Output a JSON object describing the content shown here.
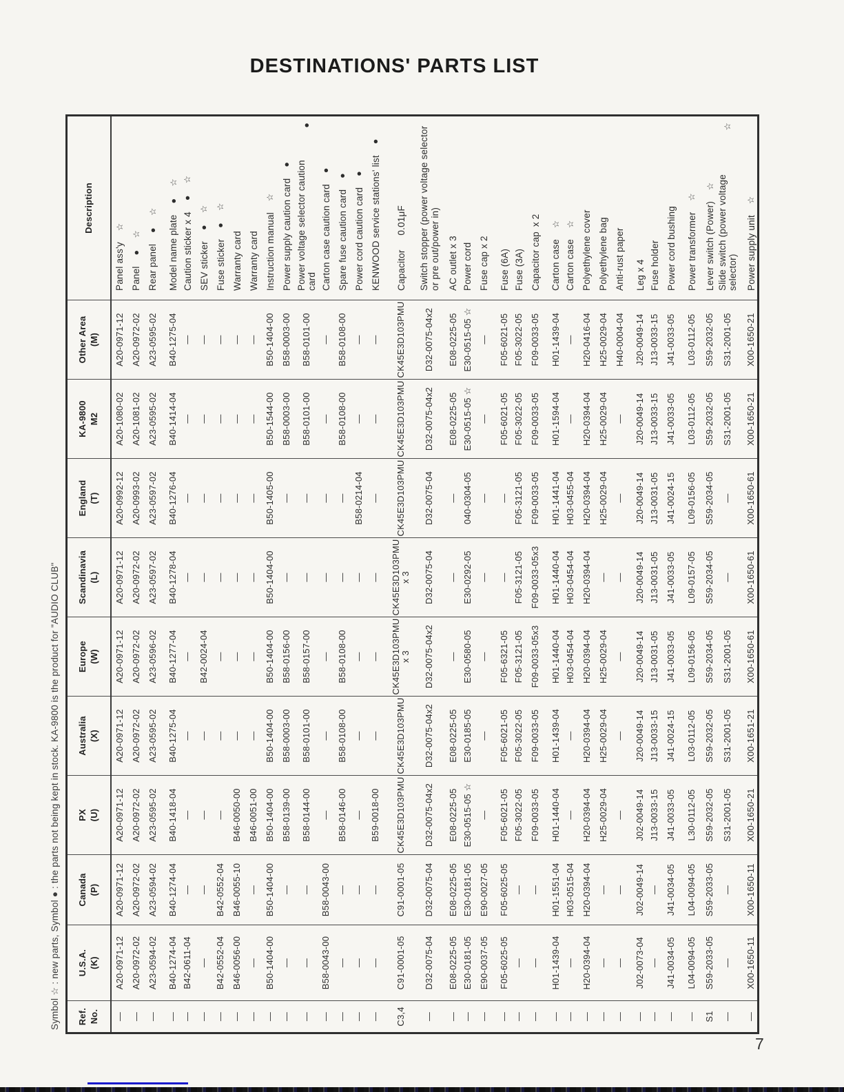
{
  "page": {
    "title": "DESTINATIONS' PARTS LIST",
    "note": "Symbol ☆ : new parts, Symbol ● : the parts not being kept in stock.  KA-9800 is the product for \"AUDIO CLUB\"",
    "number": "7",
    "accent_line_color": "#1a1acc"
  },
  "table": {
    "column_keys": [
      "ref",
      "usa",
      "canada",
      "px",
      "australia",
      "europe",
      "scandinavia",
      "england",
      "ka9800",
      "other",
      "description"
    ],
    "columns": [
      {
        "label": "Ref.",
        "label2": "No."
      },
      {
        "label": "U.S.A.",
        "label2": "(K)"
      },
      {
        "label": "Canada",
        "label2": "(P)"
      },
      {
        "label": "PX",
        "label2": "(U)"
      },
      {
        "label": "Australia",
        "label2": "(X)"
      },
      {
        "label": "Europe",
        "label2": "(W)"
      },
      {
        "label": "Scandinavia",
        "label2": "(L)"
      },
      {
        "label": "England",
        "label2": "(T)"
      },
      {
        "label": "KA-9800",
        "label2": "M2"
      },
      {
        "label": "Other Area",
        "label2": "(M)"
      },
      {
        "label": "Description",
        "label2": ""
      }
    ],
    "rows": [
      {
        "g": false,
        "cells": [
          "—",
          "A20-0971-12",
          "A20-0971-12",
          "A20-0971-12",
          "A20-0971-12",
          "A20-0971-12",
          "A20-0971-12",
          "A20-0992-12",
          "A20-1080-02",
          "A20-0971-12"
        ],
        "desc": "Panel ass'y",
        "sym": "☆"
      },
      {
        "g": false,
        "cells": [
          "—",
          "A20-0972-02",
          "A20-0972-02",
          "A20-0972-02",
          "A20-0972-02",
          "A20-0972-02",
          "A20-0972-02",
          "A20-0993-02",
          "A20-1081-02",
          "A20-0972-02"
        ],
        "desc": "Panel",
        "sym": "● ☆"
      },
      {
        "g": false,
        "cells": [
          "—",
          "A23-0594-02",
          "A23-0594-02",
          "A23-0595-02",
          "A23-0595-02",
          "A23-0596-02",
          "A23-0597-02",
          "A23-0597-02",
          "A23-0595-02",
          "A23-0595-02"
        ],
        "desc": "Rear panel",
        "sym": "● ☆"
      },
      {
        "g": true,
        "cells": [
          "—",
          "B40-1274-04",
          "B40-1274-04",
          "B40-1418-04",
          "B40-1275-04",
          "B40-1277-04",
          "B40-1278-04",
          "B40-1276-04",
          "B40-1414-04",
          "B40-1275-04"
        ],
        "desc": "Model name plate",
        "sym": "● ☆"
      },
      {
        "g": false,
        "cells": [
          "—",
          "B42-0611-04",
          "—",
          "—",
          "—",
          "—",
          "—",
          "—",
          "—",
          "—"
        ],
        "desc": "Caution sticker x 4",
        "sym": "● ☆"
      },
      {
        "g": false,
        "cells": [
          "—",
          "—",
          "—",
          "—",
          "—",
          "B42-0024-04",
          "—",
          "—",
          "—",
          "—"
        ],
        "desc": "SEV sticker",
        "sym": "● ☆"
      },
      {
        "g": false,
        "cells": [
          "—",
          "B42-0552-04",
          "B42-0552-04",
          "—",
          "—",
          "—",
          "—",
          "—",
          "—",
          "—"
        ],
        "desc": "Fuse sticker",
        "sym": "● ☆"
      },
      {
        "g": false,
        "cells": [
          "—",
          "B46-0056-00",
          "B46-0055-10",
          "B46-0050-00",
          "—",
          "—",
          "—",
          "—",
          "—",
          "—"
        ],
        "desc": "Warranty card",
        "sym": ""
      },
      {
        "g": false,
        "cells": [
          "—",
          "—",
          "—",
          "B46-0051-00",
          "—",
          "—",
          "—",
          "—",
          "—",
          "—"
        ],
        "desc": "Warranty card",
        "sym": ""
      },
      {
        "g": false,
        "cells": [
          "—",
          "B50-1404-00",
          "B50-1404-00",
          "B50-1404-00",
          "B50-1404-00",
          "B50-1404-00",
          "B50-1404-00",
          "B50-1405-00",
          "B50-1544-00",
          "B50-1404-00"
        ],
        "desc": "Instruction manual",
        "sym": "☆"
      },
      {
        "g": false,
        "cells": [
          "—",
          "—",
          "—",
          "B58-0139-00",
          "B58-0003-00",
          "B58-0156-00",
          "—",
          "—",
          "B58-0003-00",
          "B58-0003-00"
        ],
        "desc": "Power supply caution card",
        "sym": "●"
      },
      {
        "g": false,
        "cells": [
          "—",
          "—",
          "—",
          "B58-0144-00",
          "B58-0101-00",
          "B58-0157-00",
          "—",
          "—",
          "B58-0101-00",
          "B58-0101-00"
        ],
        "desc": "Power voltage selector caution card",
        "sym": "●"
      },
      {
        "g": false,
        "cells": [
          "—",
          "B58-0043-00",
          "B58-0043-00",
          "—",
          "—",
          "—",
          "—",
          "—",
          "—",
          "—"
        ],
        "desc": "Carton case caution card",
        "sym": "●"
      },
      {
        "g": false,
        "cells": [
          "—",
          "—",
          "—",
          "B58-0146-00",
          "B58-0108-00",
          "B58-0108-00",
          "—",
          "—",
          "B58-0108-00",
          "B58-0108-00"
        ],
        "desc": "Spare fuse caution card",
        "sym": "●"
      },
      {
        "g": false,
        "cells": [
          "—",
          "—",
          "—",
          "—",
          "—",
          "—",
          "—",
          "B58-0214-04",
          "—",
          "—"
        ],
        "desc": "Power cord caution card",
        "sym": "●"
      },
      {
        "g": false,
        "cells": [
          "—",
          "—",
          "—",
          "B59-0018-00",
          "—",
          "—",
          "—",
          "—",
          "—",
          "—"
        ],
        "desc": "KENWOOD service stations' list",
        "sym": "●"
      },
      {
        "g": true,
        "cells": [
          "C3,4",
          "C91-0001-05",
          "C91-0001-05",
          "CK45E3D103PMU",
          "CK45E3D103PMU",
          "CK45E3D103PMU\nx 3",
          "CK45E3D103PMU\nx 3",
          "CK45E3D103PMU",
          "CK45E3D103PMU",
          "CK45E3D103PMU"
        ],
        "desc": "Capacitor   0.01μF",
        "sym": ""
      },
      {
        "g": true,
        "cells": [
          "—",
          "D32-0075-04",
          "D32-0075-04",
          "D32-0075-04x2",
          "D32-0075-04x2",
          "D32-0075-04x2",
          "D32-0075-04",
          "D32-0075-04",
          "D32-0075-04x2",
          "D32-0075-04x2"
        ],
        "desc": "Switch stopper (power voltage selector\nor pre out/power in)",
        "sym": ""
      },
      {
        "g": true,
        "cells": [
          "—",
          "E08-0225-05",
          "E08-0225-05",
          "E08-0225-05",
          "E08-0225-05",
          "—",
          "—",
          "—",
          "E08-0225-05",
          "E08-0225-05"
        ],
        "desc": "AC outlet x 3",
        "sym": ""
      },
      {
        "g": false,
        "cells": [
          "—",
          "E30-0181-05",
          "E30-0181-05",
          "E30-0515-05 ☆",
          "E30-0185-05",
          "E30-0580-05",
          "E30-0292-05",
          "040-0304-05",
          "E30-0515-05 ☆",
          "E30-0515-05 ☆"
        ],
        "desc": "Power cord",
        "sym": ""
      },
      {
        "g": false,
        "cells": [
          "—",
          "E90-0037-05",
          "E90-0027-05",
          "—",
          "—",
          "—",
          "—",
          "—",
          "—",
          "—"
        ],
        "desc": "Fuse cap x 2",
        "sym": ""
      },
      {
        "g": true,
        "cells": [
          "—",
          "F05-6025-05",
          "F05-6025-05",
          "F05-6021-05",
          "F05-6021-05",
          "F05-6321-05",
          "—",
          "—",
          "F05-6021-05",
          "F05-6021-05"
        ],
        "desc": "Fuse (6A)",
        "sym": ""
      },
      {
        "g": false,
        "cells": [
          "—",
          "—",
          "—",
          "F05-3022-05",
          "F05-3022-05",
          "F05-3121-05",
          "F05-3121-05",
          "F05-3121-05",
          "F05-3022-05",
          "F05-3022-05"
        ],
        "desc": "Fuse (3A)",
        "sym": ""
      },
      {
        "g": false,
        "cells": [
          "—",
          "—",
          "—",
          "F09-0033-05",
          "F09-0033-05",
          "F09-0033-05x3",
          "F09-0033-05x3",
          "F09-0033-05",
          "F09-0033-05",
          "F09-0033-05"
        ],
        "desc": "Capacitor cap x 2",
        "sym": ""
      },
      {
        "g": true,
        "cells": [
          "—",
          "H01-1439-04",
          "H01-1551-04",
          "H01-1440-04",
          "H01-1439-04",
          "H01-1440-04",
          "H01-1440-04",
          "H01-1441-04",
          "H01-1594-04",
          "H01-1439-04"
        ],
        "desc": "Carton case",
        "sym": "☆"
      },
      {
        "g": false,
        "cells": [
          "—",
          "—",
          "H03-0515-04",
          "—",
          "—",
          "H03-0454-04",
          "H03-0454-04",
          "H03-0455-04",
          "—",
          "—"
        ],
        "desc": "Carton case",
        "sym": "☆"
      },
      {
        "g": false,
        "cells": [
          "—",
          "H20-0394-04",
          "H20-0394-04",
          "H20-0394-04",
          "H20-0394-04",
          "H20-0394-04",
          "H20-0394-04",
          "H20-0394-04",
          "H20-0394-04",
          "H20-0416-04"
        ],
        "desc": "Polyethylene cover",
        "sym": ""
      },
      {
        "g": false,
        "cells": [
          "—",
          "—",
          "—",
          "H25-0029-04",
          "H25-0029-04",
          "H25-0029-04",
          "—",
          "H25-0029-04",
          "H25-0029-04",
          "H25-0029-04"
        ],
        "desc": "Polyethylene bag",
        "sym": ""
      },
      {
        "g": false,
        "cells": [
          "—",
          "—",
          "—",
          "—",
          "—",
          "—",
          "—",
          "—",
          "—",
          "H40-0004-04"
        ],
        "desc": "Anti-rust paper",
        "sym": ""
      },
      {
        "g": true,
        "cells": [
          "—",
          "J02-0073-04",
          "J02-0049-14",
          "J02-0049-14",
          "J20-0049-14",
          "J20-0049-14",
          "J20-0049-14",
          "J20-0049-14",
          "J20-0049-14",
          "J20-0049-14"
        ],
        "desc": "Leg x 4",
        "sym": ""
      },
      {
        "g": false,
        "cells": [
          "—",
          "—",
          "—",
          "J13-0033-15",
          "J13-0033-15",
          "J13-0031-05",
          "J13-0031-05",
          "J13-0031-05",
          "J13-0033-15",
          "J13-0033-15"
        ],
        "desc": "Fuse holder",
        "sym": ""
      },
      {
        "g": false,
        "cells": [
          "—",
          "J41-0034-05",
          "J41-0034-05",
          "J41-0033-05",
          "J41-0024-15",
          "J41-0033-05",
          "J41-0033-05",
          "J41-0024-15",
          "J41-0033-05",
          "J41-0033-05"
        ],
        "desc": "Power cord bushing",
        "sym": ""
      },
      {
        "g": true,
        "cells": [
          "—",
          "L04-0094-05",
          "L04-0094-05",
          "L30-0112-05",
          "L03-0112-05",
          "L09-0156-05",
          "L09-0157-05",
          "L09-0156-05",
          "L03-0112-05",
          "L03-0112-05"
        ],
        "desc": "Power transformer",
        "sym": "☆"
      },
      {
        "g": true,
        "cells": [
          "S1",
          "S59-2033-05",
          "S59-2033-05",
          "S59-2032-05",
          "S59-2032-05",
          "S59-2034-05",
          "S59-2034-05",
          "S59-2034-05",
          "S59-2032-05",
          "S59-2032-05"
        ],
        "desc": "Lever switch (Power)",
        "sym": "☆"
      },
      {
        "g": false,
        "cells": [
          "—",
          "—",
          "—",
          "S31-2001-05",
          "S31-2001-05",
          "S31-2001-05",
          "—",
          "—",
          "S31-2001-05",
          "S31-2001-05"
        ],
        "desc": "Slide switch (power voltage selector)",
        "sym": "☆"
      },
      {
        "g": true,
        "cells": [
          "—",
          "X00-1650-11",
          "X00-1650-11",
          "X00-1650-21",
          "X00-1651-21",
          "X00-1650-61",
          "X00-1650-61",
          "X00-1650-61",
          "X00-1650-21",
          "X00-1650-21"
        ],
        "desc": "Power supply unit",
        "sym": "☆"
      }
    ]
  }
}
